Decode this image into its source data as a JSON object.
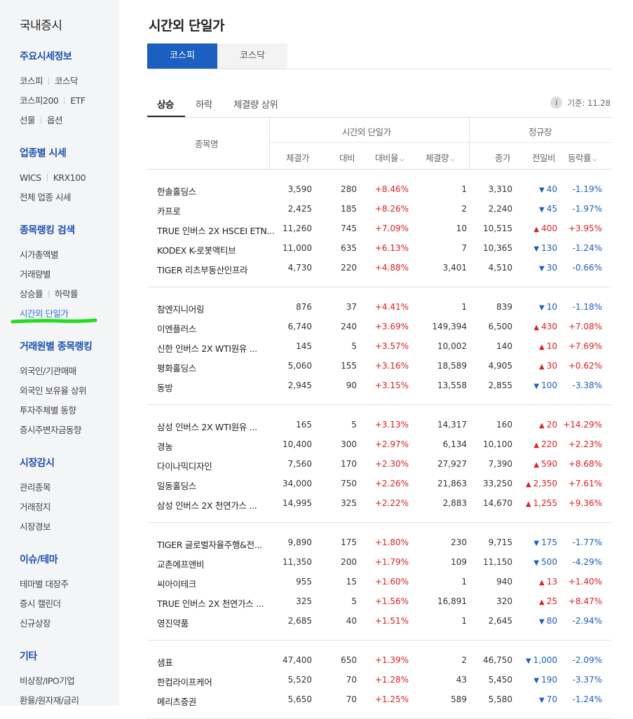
{
  "sidebar": {
    "title": "국내증시",
    "groups": [
      {
        "head": "주요시세정보",
        "rows": [
          [
            "코스피",
            "코스닥"
          ],
          [
            "코스피200",
            "ETF"
          ],
          [
            "선물",
            "옵션"
          ]
        ]
      },
      {
        "head": "업종별 시세",
        "rows": [
          [
            "WICS",
            "KRX100"
          ],
          [
            "전체 업종 시세"
          ]
        ]
      },
      {
        "head": "종목랭킹 검색",
        "rows": [
          [
            "시가총액별"
          ],
          [
            "거래량별"
          ],
          [
            "상승률",
            "하락률"
          ],
          [
            "시간외 단일가"
          ]
        ]
      },
      {
        "head": "거래원별 종목랭킹",
        "rows": [
          [
            "외국인/기관매매"
          ],
          [
            "외국인 보유율 상위"
          ],
          [
            "투자주체별 동향"
          ],
          [
            "증시주변자금동향"
          ]
        ]
      },
      {
        "head": "시장감시",
        "rows": [
          [
            "관리종목"
          ],
          [
            "거래정지"
          ],
          [
            "시장경보"
          ]
        ]
      },
      {
        "head": "이슈/테마",
        "rows": [
          [
            "테마별 대장주"
          ],
          [
            "증시 캘린더"
          ],
          [
            "신규상장"
          ]
        ]
      },
      {
        "head": "기타",
        "rows": [
          [
            "비상장/IPO기업"
          ],
          [
            "환율/원자재/금리"
          ]
        ]
      }
    ]
  },
  "page": {
    "title": "시간외 단일가",
    "market_tabs": [
      "코스피",
      "코스닥"
    ],
    "sub_tabs": [
      "상승",
      "하락",
      "체결량 상위"
    ],
    "base_date": "기준: 11.28",
    "info_icon": "i"
  },
  "table": {
    "group_headers": {
      "after_hours": "시간외 단일가",
      "regular": "정규장"
    },
    "columns": {
      "name": "종목명",
      "price": "체결가",
      "diff": "대비",
      "rate": "대비율",
      "volume": "체결량",
      "close": "종가",
      "change": "전일비",
      "change_rate": "등락률"
    },
    "caret": "⌵",
    "groups": [
      [
        {
          "name": "한솔홀딩스",
          "price": "3,590",
          "diff": "280",
          "rate": "+8.46%",
          "vol": "1",
          "close": "3,310",
          "chg": "40",
          "dir": "down",
          "crate": "-1.19%"
        },
        {
          "name": "카프로",
          "price": "2,425",
          "diff": "185",
          "rate": "+8.26%",
          "vol": "2",
          "close": "2,240",
          "chg": "45",
          "dir": "down",
          "crate": "-1.97%"
        },
        {
          "name": "TRUE 인버스 2X HSCEI ETN...",
          "price": "11,260",
          "diff": "745",
          "rate": "+7.09%",
          "vol": "10",
          "close": "10,515",
          "chg": "400",
          "dir": "up",
          "crate": "+3.95%"
        },
        {
          "name": "KODEX K-로봇액티브",
          "price": "11,000",
          "diff": "635",
          "rate": "+6.13%",
          "vol": "7",
          "close": "10,365",
          "chg": "130",
          "dir": "down",
          "crate": "-1.24%"
        },
        {
          "name": "TIGER 리츠부동산인프라",
          "price": "4,730",
          "diff": "220",
          "rate": "+4.88%",
          "vol": "3,401",
          "close": "4,510",
          "chg": "30",
          "dir": "down",
          "crate": "-0.66%"
        }
      ],
      [
        {
          "name": "참엔지니어링",
          "price": "876",
          "diff": "37",
          "rate": "+4.41%",
          "vol": "1",
          "close": "839",
          "chg": "10",
          "dir": "down",
          "crate": "-1.18%"
        },
        {
          "name": "이엔플러스",
          "price": "6,740",
          "diff": "240",
          "rate": "+3.69%",
          "vol": "149,394",
          "close": "6,500",
          "chg": "430",
          "dir": "up",
          "crate": "+7.08%"
        },
        {
          "name": "신한 인버스 2X WTI원유 ...",
          "price": "145",
          "diff": "5",
          "rate": "+3.57%",
          "vol": "10,002",
          "close": "140",
          "chg": "10",
          "dir": "up",
          "crate": "+7.69%"
        },
        {
          "name": "평화홀딩스",
          "price": "5,060",
          "diff": "155",
          "rate": "+3.16%",
          "vol": "18,589",
          "close": "4,905",
          "chg": "30",
          "dir": "up",
          "crate": "+0.62%"
        },
        {
          "name": "동방",
          "price": "2,945",
          "diff": "90",
          "rate": "+3.15%",
          "vol": "13,558",
          "close": "2,855",
          "chg": "100",
          "dir": "down",
          "crate": "-3.38%"
        }
      ],
      [
        {
          "name": "삼성 인버스 2X WTI원유 ...",
          "price": "165",
          "diff": "5",
          "rate": "+3.13%",
          "vol": "14,317",
          "close": "160",
          "chg": "20",
          "dir": "up",
          "crate": "+14.29%"
        },
        {
          "name": "경농",
          "price": "10,400",
          "diff": "300",
          "rate": "+2.97%",
          "vol": "6,134",
          "close": "10,100",
          "chg": "220",
          "dir": "up",
          "crate": "+2.23%"
        },
        {
          "name": "다이나믹디자인",
          "price": "7,560",
          "diff": "170",
          "rate": "+2.30%",
          "vol": "27,927",
          "close": "7,390",
          "chg": "590",
          "dir": "up",
          "crate": "+8.68%"
        },
        {
          "name": "일동홀딩스",
          "price": "34,000",
          "diff": "750",
          "rate": "+2.26%",
          "vol": "21,863",
          "close": "33,250",
          "chg": "2,350",
          "dir": "up",
          "crate": "+7.61%"
        },
        {
          "name": "삼성 인버스 2X 천연가스 ...",
          "price": "14,995",
          "diff": "325",
          "rate": "+2.22%",
          "vol": "2,883",
          "close": "14,670",
          "chg": "1,255",
          "dir": "up",
          "crate": "+9.36%"
        }
      ],
      [
        {
          "name": "TIGER 글로벌자율주행&전...",
          "price": "9,890",
          "diff": "175",
          "rate": "+1.80%",
          "vol": "230",
          "close": "9,715",
          "chg": "175",
          "dir": "down",
          "crate": "-1.77%"
        },
        {
          "name": "교촌에프앤비",
          "price": "11,350",
          "diff": "200",
          "rate": "+1.79%",
          "vol": "109",
          "close": "11,150",
          "chg": "500",
          "dir": "down",
          "crate": "-4.29%"
        },
        {
          "name": "씨아이테크",
          "price": "955",
          "diff": "15",
          "rate": "+1.60%",
          "vol": "1",
          "close": "940",
          "chg": "13",
          "dir": "up",
          "crate": "+1.40%"
        },
        {
          "name": "TRUE 인버스 2X 천연가스 ...",
          "price": "325",
          "diff": "5",
          "rate": "+1.56%",
          "vol": "16,891",
          "close": "320",
          "chg": "25",
          "dir": "up",
          "crate": "+8.47%"
        },
        {
          "name": "영진약품",
          "price": "2,685",
          "diff": "40",
          "rate": "+1.51%",
          "vol": "1",
          "close": "2,645",
          "chg": "80",
          "dir": "down",
          "crate": "-2.94%"
        }
      ],
      [
        {
          "name": "샘표",
          "price": "47,400",
          "diff": "650",
          "rate": "+1.39%",
          "vol": "2",
          "close": "46,750",
          "chg": "1,000",
          "dir": "down",
          "crate": "-2.09%"
        },
        {
          "name": "한컴라이프케어",
          "price": "5,520",
          "diff": "70",
          "rate": "+1.28%",
          "vol": "43",
          "close": "5,450",
          "chg": "190",
          "dir": "down",
          "crate": "-3.37%"
        },
        {
          "name": "메리츠증권",
          "price": "5,650",
          "diff": "70",
          "rate": "+1.25%",
          "vol": "589",
          "close": "5,580",
          "chg": "70",
          "dir": "down",
          "crate": "-1.24%"
        }
      ]
    ]
  },
  "colors": {
    "brand_blue": "#1b5fc1",
    "up_red": "#e02020",
    "down_blue": "#1b5fc1",
    "highlight_green": "#22dd22"
  },
  "icons": {
    "up": "triangle-up-icon",
    "down": "triangle-down-icon",
    "info": "info-icon"
  }
}
